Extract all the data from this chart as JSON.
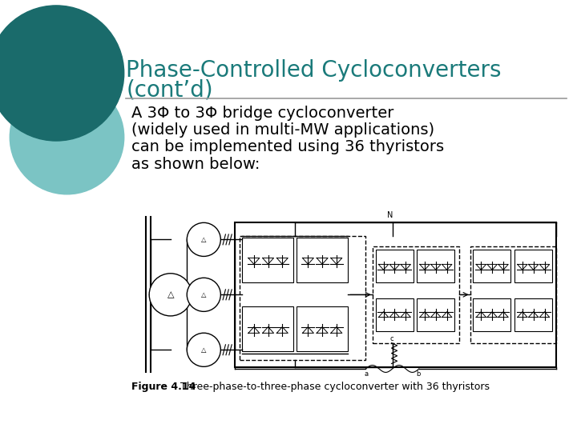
{
  "title_line1": "Phase-Controlled Cycloconverters",
  "title_line2": "(cont’d)",
  "title_color": "#1a7a7a",
  "title_fontsize": 20,
  "body_lines": [
    "A 3Φ to 3Φ bridge cycloconverter",
    "(widely used in multi-MW applications)",
    "can be implemented using 36 thyristors",
    "as shown below:"
  ],
  "body_fontsize": 14,
  "body_color": "#000000",
  "caption_bold": "Figure 4.14",
  "caption_rest": "   Three-phase-to-three-phase cycloconverter with 36 thyristors",
  "caption_fontsize": 9,
  "bg_color": "#ffffff",
  "teal_dark": "#1a6b6b",
  "teal_light": "#7bc4c4",
  "sep_color": "#999999"
}
